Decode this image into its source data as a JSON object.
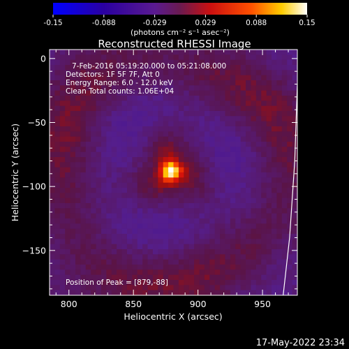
{
  "colorbar": {
    "ticks": [
      "-0.15",
      "-0.088",
      "-0.029",
      "0.029",
      "0.088",
      "0.15"
    ],
    "range": [
      -0.15,
      0.15
    ],
    "units": "(photons cm⁻² s⁻¹ asec⁻²)"
  },
  "plot": {
    "title": "Reconstructed RHESSI Image",
    "xlabel": "Heliocentric X (arcsec)",
    "ylabel": "Heliocentric Y (arcsec)",
    "info": [
      "7-Feb-2016 05:19:20.000 to 05:21:08.000",
      "Detectors: 1F 5F 7F, Att 0",
      "Energy Range: 6.0 - 12.0 keV",
      "Clean     Total counts: 1.06E+04"
    ],
    "peak_label": "Position of Peak = [879,-88]"
  },
  "timestamp": "17-May-2022 23:34",
  "chart_data": {
    "type": "heatmap",
    "title": "Reconstructed RHESSI Image",
    "xlabel": "Heliocentric X (arcsec)",
    "ylabel": "Heliocentric Y (arcsec)",
    "xlim": [
      785,
      977
    ],
    "ylim": [
      -185,
      7
    ],
    "x_ticks": [
      800,
      850,
      900,
      950
    ],
    "y_ticks": [
      0,
      -50,
      -100,
      -150
    ],
    "peak": {
      "x": 879,
      "y": -88,
      "value": 0.15
    },
    "value_range": [
      -0.15,
      0.15
    ],
    "colormap": "rainbow/heat (blue-purple negative, red-yellow-white positive)",
    "limb": [
      [
        977,
        -20
      ],
      [
        975,
        -80
      ],
      [
        971,
        -140
      ],
      [
        966,
        -185
      ]
    ]
  },
  "colors": {
    "background": "#000000",
    "foreground": "#ffffff"
  }
}
